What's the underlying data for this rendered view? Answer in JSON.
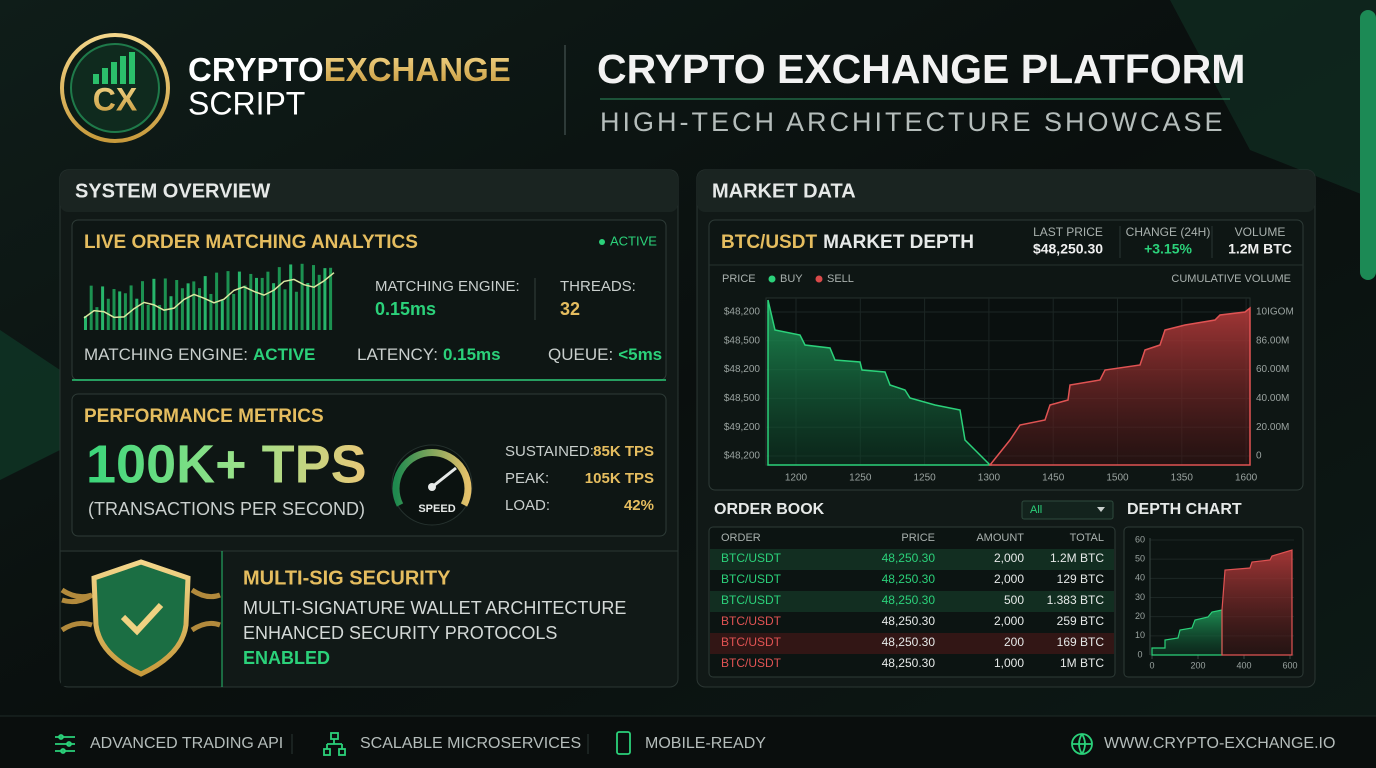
{
  "header": {
    "logo": "CX",
    "brand_1": "CRYPTO",
    "brand_2": "EXCHANGE",
    "brand_3": "SCRIPT",
    "title": "CRYPTO EXCHANGE PLATFORM",
    "subtitle": "HIGH-TECH ARCHITECTURE SHOWCASE"
  },
  "system_overview": {
    "title": "SYSTEM OVERVIEW",
    "live": {
      "title": "LIVE ORDER MATCHING ANALYTICS",
      "status": "ACTIVE",
      "engine_label": "MATCHING ENGINE:",
      "engine_value": "0.15ms",
      "threads_label": "THREADS:",
      "threads_value": "32",
      "footer": [
        {
          "label": "MATCHING ENGINE:",
          "value": "ACTIVE"
        },
        {
          "label": "LATENCY:",
          "value": "0.15ms"
        },
        {
          "label": "QUEUE:",
          "value": "<5ms"
        }
      ]
    },
    "performance": {
      "title": "PERFORMANCE METRICS",
      "headline": "100K+ TPS",
      "caption": "(TRANSACTIONS PER SECOND)",
      "gauge_label": "SPEED",
      "stats": [
        {
          "label": "SUSTAINED:",
          "value": "85K TPS"
        },
        {
          "label": "PEAK:",
          "value": "105K TPS"
        },
        {
          "label": "LOAD:",
          "value": "42%"
        }
      ]
    },
    "security": {
      "title": "MULTI-SIG SECURITY",
      "lines": [
        "MULTI-SIGNATURE WALLET ARCHITECTURE",
        "ENHANCED SECURITY PROTOCOLS"
      ],
      "status": "ENABLED"
    }
  },
  "market": {
    "title": "MARKET DATA",
    "pair": "BTC/USDT",
    "depth_title": "MARKET DEPTH",
    "stats": [
      {
        "label": "LAST PRICE",
        "value": "$48,250.30"
      },
      {
        "label": "CHANGE (24H)",
        "value": "+3.15%"
      },
      {
        "label": "VOLUME",
        "value": "1.2M BTC"
      }
    ],
    "legend": {
      "price": "PRICE",
      "buy": "BUY",
      "sell": "SELL",
      "volume": "CUMULATIVE VOLUME"
    },
    "left_axis": [
      "$48,200",
      "$48,500",
      "$48,200",
      "$48,500",
      "$49,200",
      "$48,200"
    ],
    "right_axis": [
      "10IGOM",
      "86.00M",
      "60.00M",
      "40.00M",
      "20.00M",
      "0"
    ],
    "x_axis": [
      "1200",
      "1250",
      "1250",
      "1300",
      "1450",
      "1500",
      "1350",
      "1600"
    ],
    "order_book": {
      "title": "ORDER BOOK",
      "filter": "All",
      "headers": [
        "ORDER",
        "PRICE",
        "AMOUNT",
        "TOTAL"
      ],
      "rows": [
        {
          "cells": [
            "BTC/USDT",
            "48,250.30",
            "2,000",
            "1.2M BTC"
          ],
          "side": "buy"
        },
        {
          "cells": [
            "BTC/USDT",
            "48,250.30",
            "2,000",
            "129 BTC"
          ],
          "side": "buy"
        },
        {
          "cells": [
            "BTC/USDT",
            "48,250.30",
            "500",
            "1.383 BTC"
          ],
          "side": "buy"
        },
        {
          "cells": [
            "BTC/USDT",
            "48,250.30",
            "2,000",
            "259 BTC"
          ],
          "side": "sell"
        },
        {
          "cells": [
            "BTC/USDT",
            "48,250.30",
            "200",
            "169 BTC"
          ],
          "side": "sell"
        },
        {
          "cells": [
            "BTC/USDT",
            "48,250.30",
            "1,000",
            "1M BTC"
          ],
          "side": "sell"
        }
      ]
    },
    "depth_chart": {
      "title": "DEPTH CHART",
      "yticks": [
        60,
        50,
        40,
        30,
        20,
        10,
        0
      ],
      "xticks": [
        0,
        200,
        400,
        600
      ]
    }
  },
  "footer": {
    "items": [
      "ADVANCED TRADING API",
      "SCALABLE MICROSERVICES",
      "MOBILE-READY"
    ],
    "website": "WWW.CRYPTO-EXCHANGE.IO"
  }
}
